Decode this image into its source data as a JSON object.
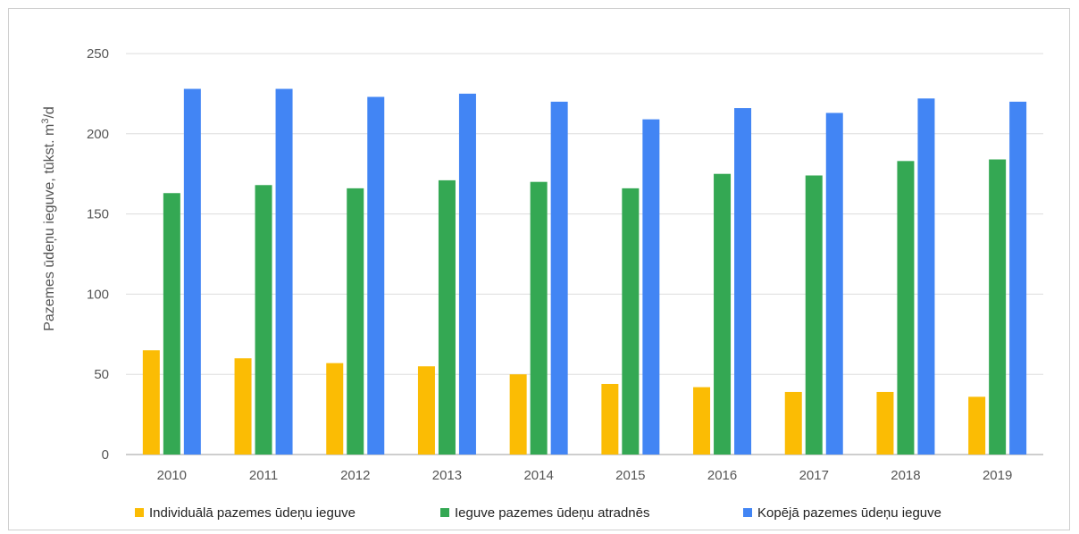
{
  "chart_data": {
    "type": "bar",
    "categories": [
      "2010",
      "2011",
      "2012",
      "2013",
      "2014",
      "2015",
      "2016",
      "2017",
      "2018",
      "2019"
    ],
    "series": [
      {
        "name": "Individuālā pazemes ūdeņu ieguve",
        "color": "#fbbc04",
        "values": [
          65,
          60,
          57,
          55,
          50,
          44,
          42,
          39,
          39,
          36
        ]
      },
      {
        "name": "Ieguve pazemes ūdeņu atradnēs",
        "color": "#34a853",
        "values": [
          163,
          168,
          166,
          171,
          170,
          166,
          175,
          174,
          183,
          184
        ]
      },
      {
        "name": "Kopējā pazemes ūdeņu ieguve",
        "color": "#4285f4",
        "values": [
          228,
          228,
          223,
          225,
          220,
          209,
          216,
          213,
          222,
          220
        ]
      }
    ],
    "ylabel_main": "Pazemes ūdeņu ieguve, tūkst. m",
    "ylabel_sup": "3",
    "ylabel_tail": "/d",
    "ylim": [
      0,
      250
    ],
    "yticks": [
      "0",
      "50",
      "100",
      "150",
      "200",
      "250"
    ],
    "grid": true,
    "legend_position": "bottom-left"
  }
}
